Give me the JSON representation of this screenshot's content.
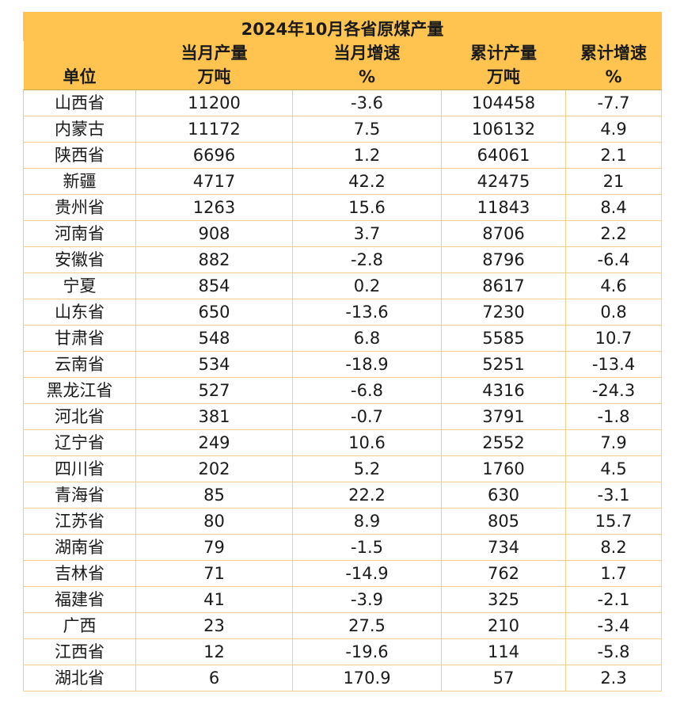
{
  "chart_data": {
    "type": "table",
    "title": "2024年10月各省原煤产量",
    "columns": [
      {
        "key": "unit",
        "line1": "",
        "line2": "单位"
      },
      {
        "key": "month_output",
        "line1": "当月产量",
        "line2": "万吨"
      },
      {
        "key": "month_growth",
        "line1": "当月增速",
        "line2": "%"
      },
      {
        "key": "cum_output",
        "line1": "累计产量",
        "line2": "万吨"
      },
      {
        "key": "cum_growth",
        "line1": "累计增速",
        "line2": "%"
      }
    ],
    "rows": [
      {
        "unit": "山西省",
        "month_output": "11200",
        "month_growth": "-3.6",
        "cum_output": "104458",
        "cum_growth": "-7.7"
      },
      {
        "unit": "内蒙古",
        "month_output": "11172",
        "month_growth": "7.5",
        "cum_output": "106132",
        "cum_growth": "4.9"
      },
      {
        "unit": "陕西省",
        "month_output": "6696",
        "month_growth": "1.2",
        "cum_output": "64061",
        "cum_growth": "2.1"
      },
      {
        "unit": "新疆",
        "month_output": "4717",
        "month_growth": "42.2",
        "cum_output": "42475",
        "cum_growth": "21"
      },
      {
        "unit": "贵州省",
        "month_output": "1263",
        "month_growth": "15.6",
        "cum_output": "11843",
        "cum_growth": "8.4"
      },
      {
        "unit": "河南省",
        "month_output": "908",
        "month_growth": "3.7",
        "cum_output": "8706",
        "cum_growth": "2.2"
      },
      {
        "unit": "安徽省",
        "month_output": "882",
        "month_growth": "-2.8",
        "cum_output": "8796",
        "cum_growth": "-6.4"
      },
      {
        "unit": "宁夏",
        "month_output": "854",
        "month_growth": "0.2",
        "cum_output": "8617",
        "cum_growth": "4.6"
      },
      {
        "unit": "山东省",
        "month_output": "650",
        "month_growth": "-13.6",
        "cum_output": "7230",
        "cum_growth": "0.8"
      },
      {
        "unit": "甘肃省",
        "month_output": "548",
        "month_growth": "6.8",
        "cum_output": "5585",
        "cum_growth": "10.7"
      },
      {
        "unit": "云南省",
        "month_output": "534",
        "month_growth": "-18.9",
        "cum_output": "5251",
        "cum_growth": "-13.4"
      },
      {
        "unit": "黑龙江省",
        "month_output": "527",
        "month_growth": "-6.8",
        "cum_output": "4316",
        "cum_growth": "-24.3"
      },
      {
        "unit": "河北省",
        "month_output": "381",
        "month_growth": "-0.7",
        "cum_output": "3791",
        "cum_growth": "-1.8"
      },
      {
        "unit": "辽宁省",
        "month_output": "249",
        "month_growth": "10.6",
        "cum_output": "2552",
        "cum_growth": "7.9"
      },
      {
        "unit": "四川省",
        "month_output": "202",
        "month_growth": "5.2",
        "cum_output": "1760",
        "cum_growth": "4.5"
      },
      {
        "unit": "青海省",
        "month_output": "85",
        "month_growth": "22.2",
        "cum_output": "630",
        "cum_growth": "-3.1"
      },
      {
        "unit": "江苏省",
        "month_output": "80",
        "month_growth": "8.9",
        "cum_output": "805",
        "cum_growth": "15.7"
      },
      {
        "unit": "湖南省",
        "month_output": "79",
        "month_growth": "-1.5",
        "cum_output": "734",
        "cum_growth": "8.2"
      },
      {
        "unit": "吉林省",
        "month_output": "71",
        "month_growth": "-14.9",
        "cum_output": "762",
        "cum_growth": "1.7"
      },
      {
        "unit": "福建省",
        "month_output": "41",
        "month_growth": "-3.9",
        "cum_output": "325",
        "cum_growth": "-2.1"
      },
      {
        "unit": "广西",
        "month_output": "23",
        "month_growth": "27.5",
        "cum_output": "210",
        "cum_growth": "-3.4"
      },
      {
        "unit": "江西省",
        "month_output": "12",
        "month_growth": "-19.6",
        "cum_output": "114",
        "cum_growth": "-5.8"
      },
      {
        "unit": "湖北省",
        "month_output": "6",
        "month_growth": "170.9",
        "cum_output": "57",
        "cum_growth": "2.3"
      }
    ]
  },
  "colors": {
    "header_fill": "#ffc44f",
    "grid_line": "#f0cf86",
    "text": "#1a1a1a"
  }
}
